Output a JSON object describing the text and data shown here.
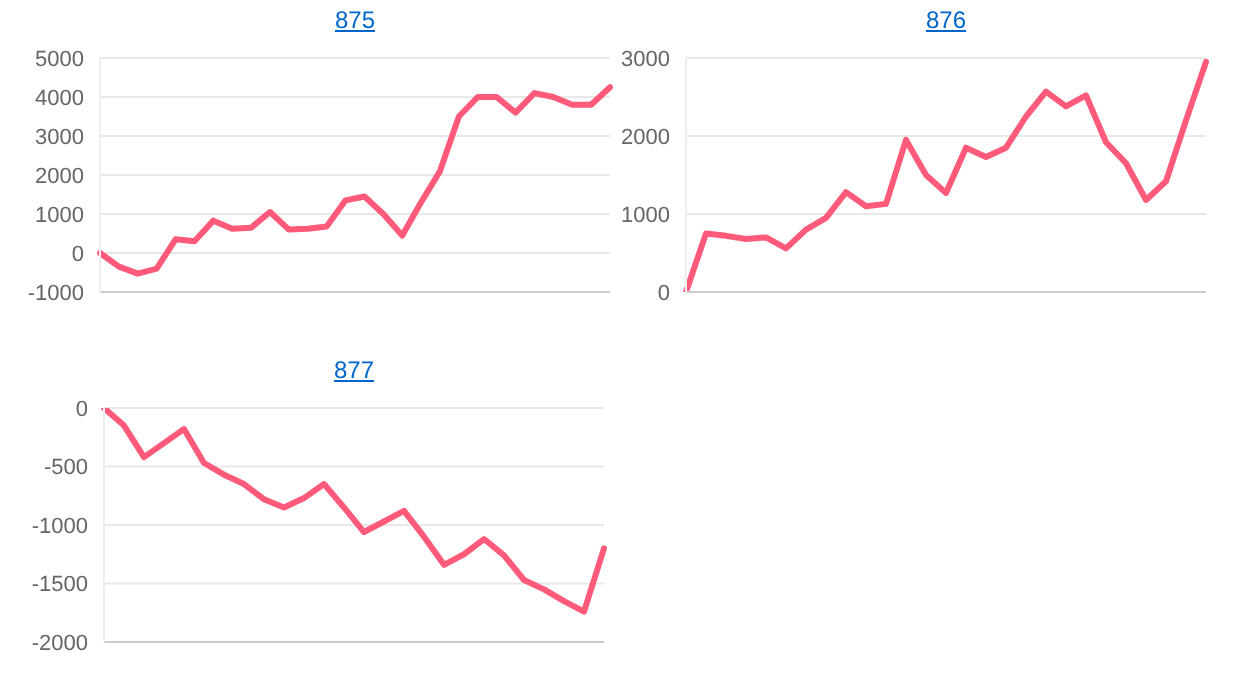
{
  "chart_data": [
    {
      "type": "line",
      "title": "875",
      "categories": [
        null,
        null,
        null,
        null,
        null,
        null,
        null,
        null,
        null,
        null,
        null,
        null,
        null,
        null,
        null,
        null,
        null,
        null,
        null,
        null,
        null,
        null,
        null,
        null,
        null,
        null,
        null,
        null
      ],
      "series": [
        {
          "color": "#ff5a79",
          "values": [
            0,
            -350,
            -530,
            -400,
            350,
            300,
            830,
            620,
            650,
            1050,
            600,
            620,
            680,
            1350,
            1450,
            1000,
            450,
            1300,
            2100,
            3500,
            4000,
            4000,
            3600,
            4100,
            4000,
            3800,
            3800,
            4250
          ]
        }
      ],
      "ylim": [
        -1000,
        5000
      ],
      "yticks": [
        -1000,
        0,
        1000,
        2000,
        3000,
        4000,
        5000
      ],
      "grid": "y",
      "tick_labels": "y",
      "marker": "none",
      "line_style": "solid",
      "legend": false
    },
    {
      "type": "line",
      "title": "876",
      "categories": [
        null,
        null,
        null,
        null,
        null,
        null,
        null,
        null,
        null,
        null,
        null,
        null,
        null,
        null,
        null,
        null,
        null,
        null,
        null,
        null,
        null,
        null,
        null,
        null,
        null,
        null,
        null
      ],
      "series": [
        {
          "color": "#ff5a79",
          "values": [
            0,
            750,
            720,
            680,
            700,
            560,
            800,
            950,
            1280,
            1100,
            1130,
            1950,
            1500,
            1270,
            1850,
            1730,
            1850,
            2250,
            2570,
            2380,
            2520,
            1920,
            1650,
            1180,
            1420,
            2200,
            2950
          ]
        }
      ],
      "ylim": [
        0,
        3000
      ],
      "yticks": [
        0,
        1000,
        2000,
        3000
      ],
      "grid": "y",
      "tick_labels": "y",
      "marker": "none",
      "line_style": "solid",
      "legend": false
    },
    {
      "type": "line",
      "title": "877",
      "categories": [
        null,
        null,
        null,
        null,
        null,
        null,
        null,
        null,
        null,
        null,
        null,
        null,
        null,
        null,
        null,
        null,
        null,
        null,
        null,
        null,
        null,
        null,
        null,
        null,
        null,
        null
      ],
      "series": [
        {
          "color": "#ff5a79",
          "values": [
            0,
            -150,
            -420,
            -300,
            -180,
            -470,
            -570,
            -650,
            -780,
            -850,
            -770,
            -650,
            -850,
            -1060,
            -970,
            -880,
            -1100,
            -1340,
            -1250,
            -1120,
            -1260,
            -1470,
            -1550,
            -1650,
            -1740,
            -1200
          ]
        }
      ],
      "ylim": [
        -2000,
        0
      ],
      "yticks": [
        -2000,
        -1500,
        -1000,
        -500,
        0
      ],
      "grid": "y",
      "tick_labels": "y",
      "marker": "none",
      "line_style": "solid",
      "legend": false
    }
  ]
}
